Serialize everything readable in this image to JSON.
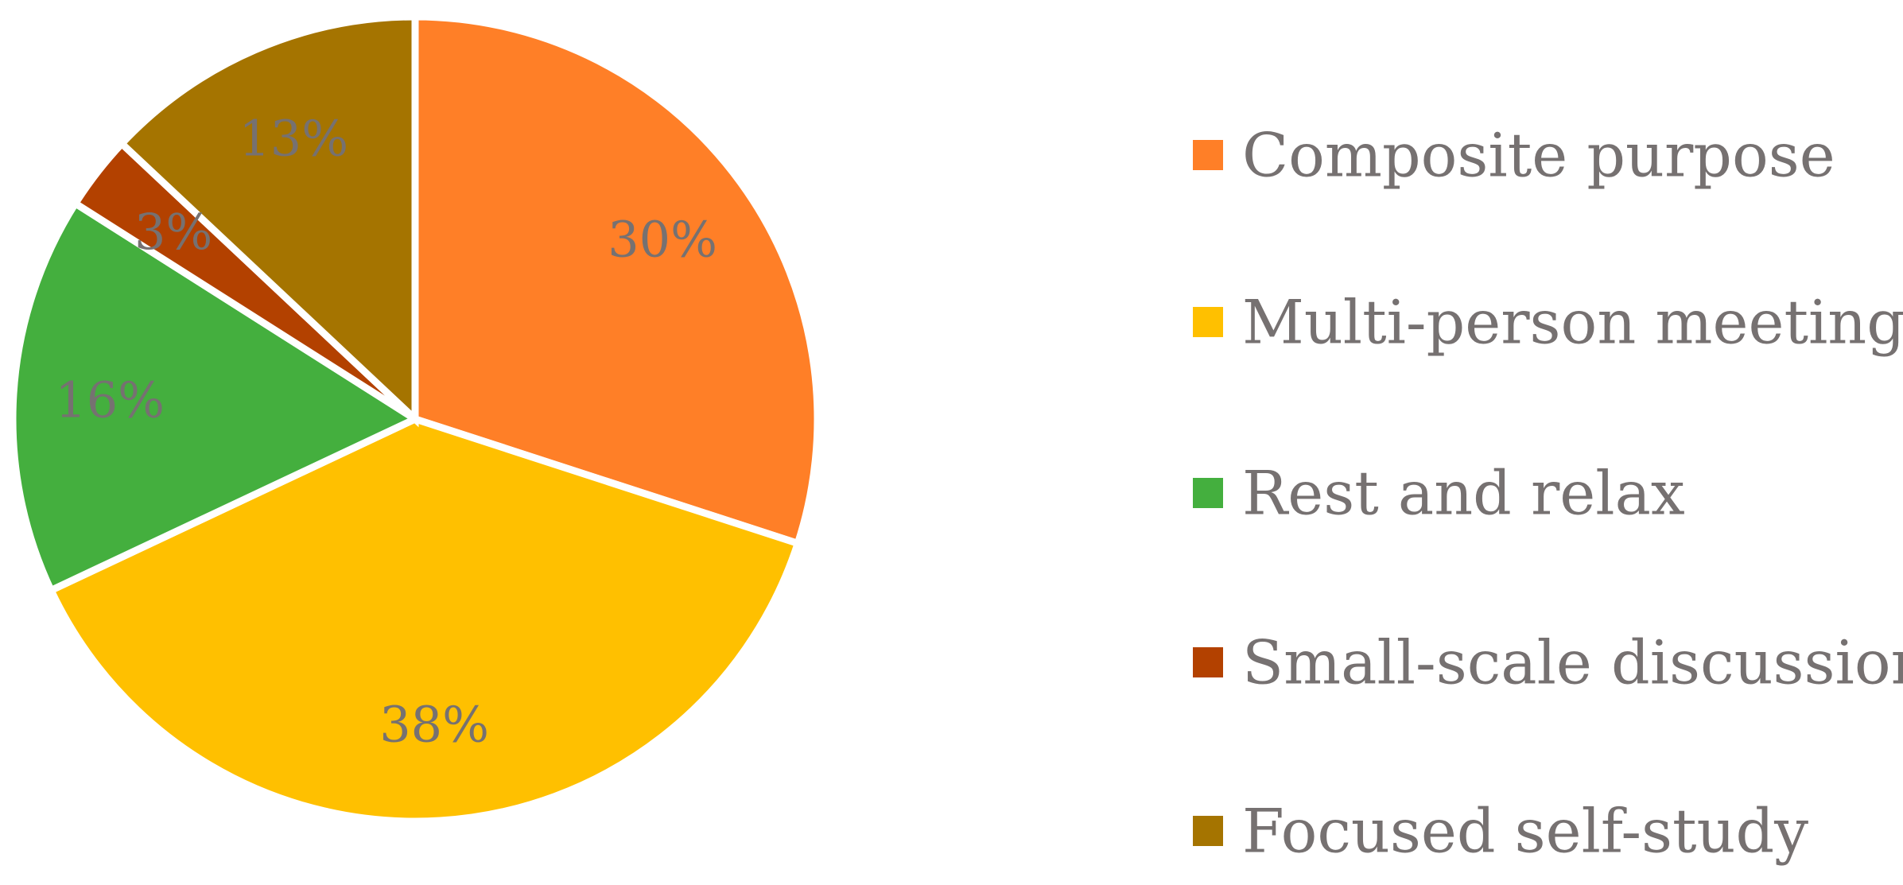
{
  "chart_data": {
    "type": "pie",
    "title": "",
    "start_angle_deg": 0,
    "direction": "clockwise",
    "slices": [
      {
        "label": "Composite purpose",
        "value": 30,
        "display": "30%",
        "color": "#FF7F27"
      },
      {
        "label": "Multi-person meeting",
        "value": 38,
        "display": "38%",
        "color": "#FFC000"
      },
      {
        "label": "Rest and relax",
        "value": 16,
        "display": "16%",
        "color": "#44AF3E"
      },
      {
        "label": "Small-scale discussion",
        "value": 3,
        "display": "3%",
        "color": "#B34100"
      },
      {
        "label": "Focused self-study",
        "value": 13,
        "display": "13%",
        "color": "#A57400"
      }
    ],
    "legend_position": "right",
    "label_color": "#767171"
  }
}
